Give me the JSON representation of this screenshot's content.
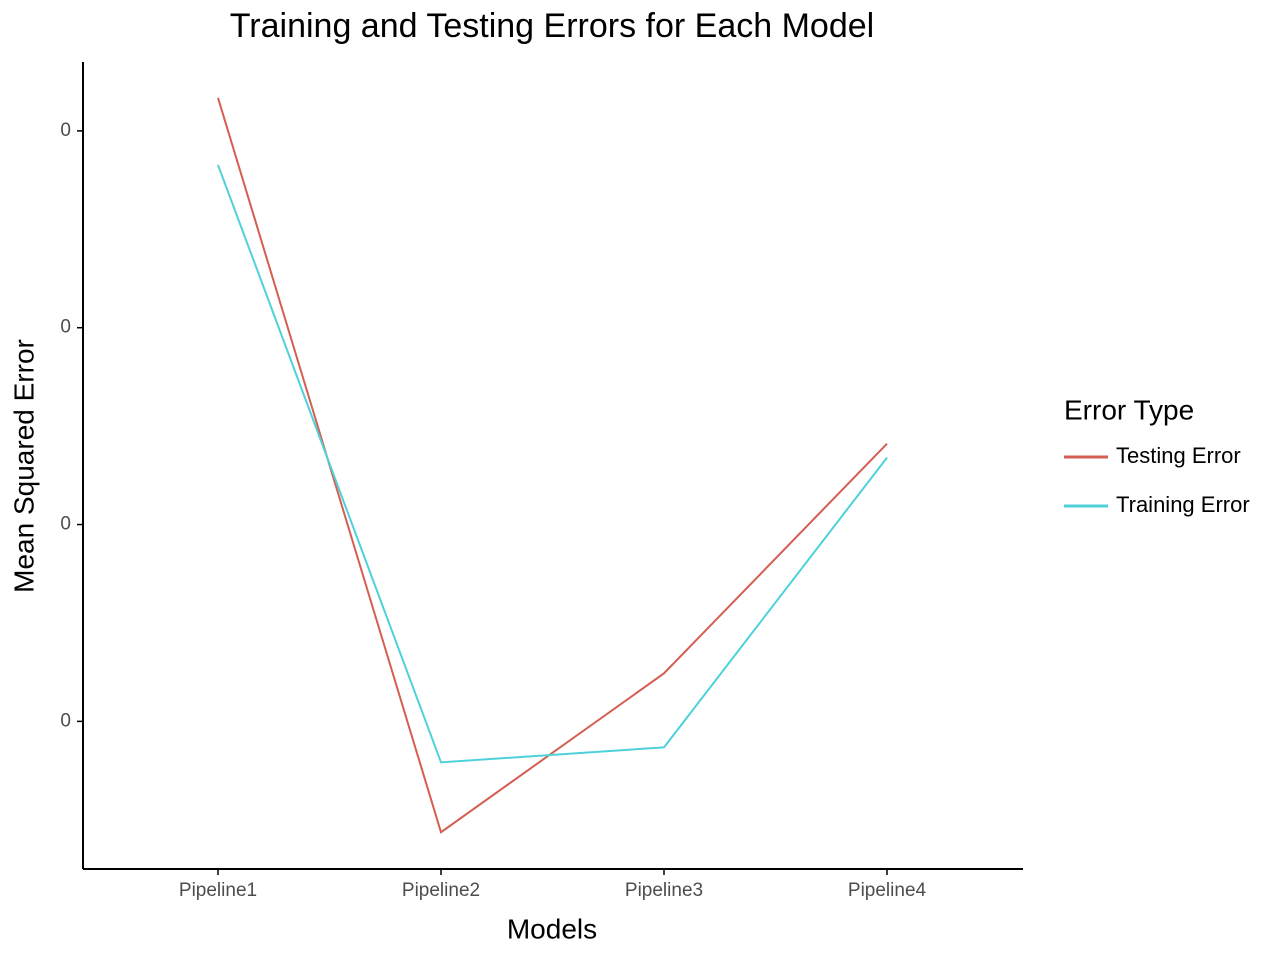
{
  "chart_data": {
    "type": "line",
    "title": "Training and Testing Errors for Each Model",
    "x_label": "Models",
    "y_label": "Mean Squared Error",
    "legend_title": "Error Type",
    "categories": [
      "Pipeline1",
      "Pipeline2",
      "Pipeline3",
      "Pipeline4"
    ],
    "series": [
      {
        "name": "Testing Error",
        "color": "#d55e52",
        "values": [
          0.004168,
          0.000437,
          0.001244,
          0.002411
        ]
      },
      {
        "name": "Training Error",
        "color": "#4fd1d9",
        "values": [
          0.003827,
          0.000792,
          0.000868,
          0.00234
        ]
      }
    ],
    "ylim": [
      0.00025,
      0.00435
    ],
    "yticks": [
      {
        "value": 0.001,
        "label": "0"
      },
      {
        "value": 0.002,
        "label": "0"
      },
      {
        "value": 0.003,
        "label": "0"
      },
      {
        "value": 0.004,
        "label": "0"
      }
    ],
    "legend": "right"
  }
}
